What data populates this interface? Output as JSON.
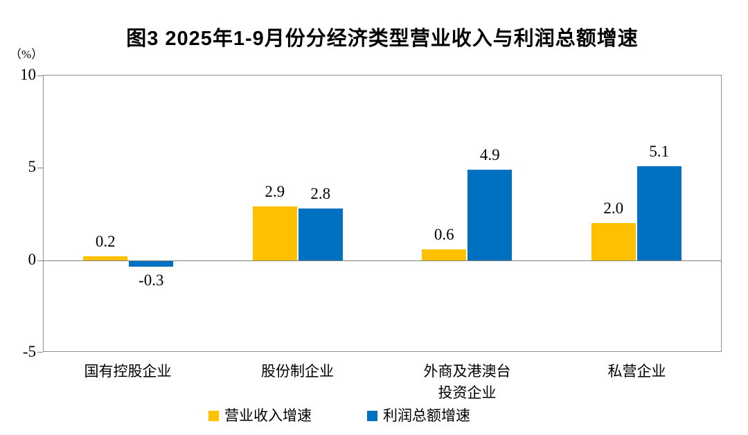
{
  "title": "图3  2025年1-9月份分经济类型营业收入与利润总额增速",
  "y_axis": {
    "unit_label": "（%）",
    "tick_labels": [
      "10",
      "5",
      "0",
      "-5"
    ]
  },
  "legend": [
    {
      "label": "营业收入增速",
      "color": "#FFC000"
    },
    {
      "label": "利润总额增速",
      "color": "#0070C0"
    }
  ],
  "chart_data": {
    "type": "bar",
    "title": "图3  2025年1-9月份分经济类型营业收入与利润总额增速",
    "categories": [
      "国有控股企业",
      "股份制企业",
      "外商及港澳台投资企业",
      "私营企业"
    ],
    "category_display": [
      [
        "国有控股企业"
      ],
      [
        "股份制企业"
      ],
      [
        "外商及港澳台",
        "投资企业"
      ],
      [
        "私营企业"
      ]
    ],
    "series": [
      {
        "name": "营业收入增速",
        "color": "#FFC000",
        "values": [
          0.2,
          2.9,
          0.6,
          2.0
        ]
      },
      {
        "name": "利润总额增速",
        "color": "#0070C0",
        "values": [
          -0.3,
          2.8,
          4.9,
          5.1
        ]
      }
    ],
    "xlabel": "",
    "ylabel": "（%）",
    "ylim": [
      -5,
      10
    ],
    "yticks": [
      10,
      5,
      0,
      -5
    ],
    "grid": false,
    "zero_line": true,
    "legend_position": "bottom"
  }
}
